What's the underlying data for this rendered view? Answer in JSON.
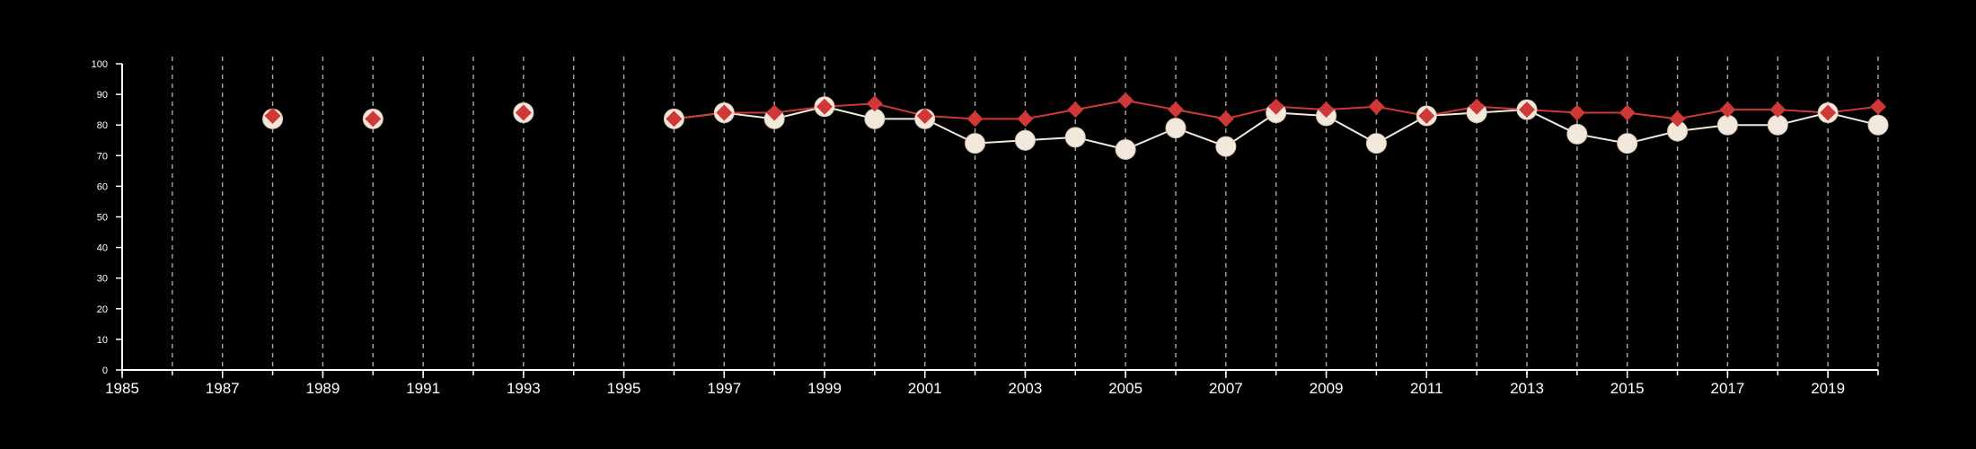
{
  "chart_data": {
    "type": "line",
    "title": "",
    "xlabel": "",
    "ylabel": "",
    "xlim": [
      1985,
      2020
    ],
    "ylim": [
      0,
      100
    ],
    "x_ticks": [
      1985,
      1987,
      1989,
      1991,
      1993,
      1995,
      1997,
      1999,
      2001,
      2003,
      2005,
      2007,
      2009,
      2011,
      2013,
      2015,
      2017,
      2019
    ],
    "y_ticks": [
      0,
      10,
      20,
      30,
      40,
      50,
      60,
      70,
      80,
      90,
      100
    ],
    "grid": "vertical dashed lines at every year",
    "legend": "none",
    "series": [
      {
        "marker": "circle",
        "color": "#f3e8dc",
        "points": [
          {
            "x": 1988,
            "y": 82
          },
          {
            "x": 1990,
            "y": 82
          },
          {
            "x": 1993,
            "y": 84
          },
          {
            "x": 1996,
            "y": 82
          },
          {
            "x": 1997,
            "y": 84
          },
          {
            "x": 1998,
            "y": 82
          },
          {
            "x": 1999,
            "y": 86
          },
          {
            "x": 2000,
            "y": 82
          },
          {
            "x": 2001,
            "y": 82
          },
          {
            "x": 2002,
            "y": 74
          },
          {
            "x": 2003,
            "y": 75
          },
          {
            "x": 2004,
            "y": 76
          },
          {
            "x": 2005,
            "y": 72
          },
          {
            "x": 2006,
            "y": 79
          },
          {
            "x": 2007,
            "y": 73
          },
          {
            "x": 2008,
            "y": 84
          },
          {
            "x": 2009,
            "y": 83
          },
          {
            "x": 2010,
            "y": 74
          },
          {
            "x": 2011,
            "y": 83
          },
          {
            "x": 2012,
            "y": 84
          },
          {
            "x": 2013,
            "y": 85
          },
          {
            "x": 2014,
            "y": 77
          },
          {
            "x": 2015,
            "y": 74
          },
          {
            "x": 2016,
            "y": 78
          },
          {
            "x": 2017,
            "y": 80
          },
          {
            "x": 2018,
            "y": 80
          },
          {
            "x": 2019,
            "y": 84
          },
          {
            "x": 2020,
            "y": 80
          }
        ]
      },
      {
        "marker": "diamond",
        "color": "#d03838",
        "points": [
          {
            "x": 1988,
            "y": 83
          },
          {
            "x": 1990,
            "y": 82
          },
          {
            "x": 1993,
            "y": 84
          },
          {
            "x": 1996,
            "y": 82
          },
          {
            "x": 1997,
            "y": 84
          },
          {
            "x": 1998,
            "y": 84
          },
          {
            "x": 1999,
            "y": 86
          },
          {
            "x": 2000,
            "y": 87
          },
          {
            "x": 2001,
            "y": 83
          },
          {
            "x": 2002,
            "y": 82
          },
          {
            "x": 2003,
            "y": 82
          },
          {
            "x": 2004,
            "y": 85
          },
          {
            "x": 2005,
            "y": 88
          },
          {
            "x": 2006,
            "y": 85
          },
          {
            "x": 2007,
            "y": 82
          },
          {
            "x": 2008,
            "y": 86
          },
          {
            "x": 2009,
            "y": 85
          },
          {
            "x": 2010,
            "y": 86
          },
          {
            "x": 2011,
            "y": 83
          },
          {
            "x": 2012,
            "y": 86
          },
          {
            "x": 2013,
            "y": 85
          },
          {
            "x": 2014,
            "y": 84
          },
          {
            "x": 2015,
            "y": 84
          },
          {
            "x": 2016,
            "y": 82
          },
          {
            "x": 2017,
            "y": 85
          },
          {
            "x": 2018,
            "y": 85
          },
          {
            "x": 2019,
            "y": 84
          },
          {
            "x": 2020,
            "y": 86
          }
        ]
      }
    ]
  },
  "colors": {
    "background": "#000000",
    "axis": "#ffffff",
    "grid": "#aaaaaa"
  }
}
